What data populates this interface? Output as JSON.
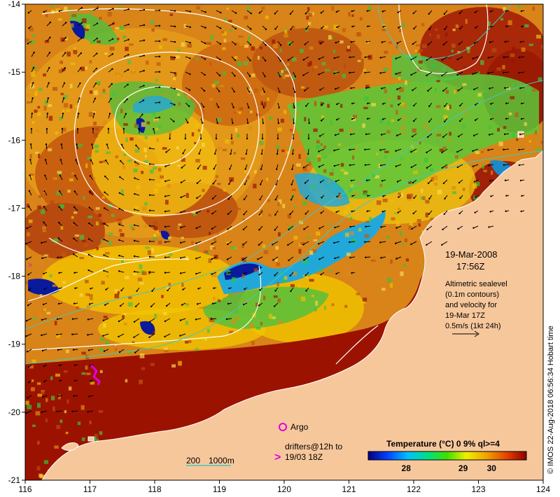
{
  "map": {
    "x_ticks": [
      "116",
      "117",
      "118",
      "119",
      "120",
      "121",
      "122",
      "123",
      "124"
    ],
    "y_ticks": [
      "-14",
      "-15",
      "-16",
      "-17",
      "-18",
      "-19",
      "-20",
      "-21"
    ]
  },
  "annotation": {
    "date": "19-Mar-2008",
    "time": "17:56Z",
    "lines": [
      "Altimetric sealevel",
      "(0.1m contours)",
      "and velocity for",
      "19-Mar 17Z",
      "0.5m/s (1kt 24h)"
    ]
  },
  "legend": {
    "argo": "Argo",
    "drifters_line1": "drifters@12h to",
    "drifters_line2": "19/03 18Z",
    "isobath_left": "200",
    "isobath_right": "1000m"
  },
  "colorbar": {
    "title": "Temperature (°C) 0 9% ql>=4",
    "ticks": [
      "28",
      "29",
      "30"
    ]
  },
  "credit": "© IMOS 22-Aug-2018 06:56:34 Hobart time",
  "colors": {
    "land": "#f7c79c",
    "hot": "#9c1200",
    "warm": "#e08a12",
    "yellow": "#f0c000",
    "green": "#2fc83a",
    "cyan": "#1aaad8",
    "blue": "#0a1a9c",
    "contour": "#ffffff",
    "isobath": "#3fc9c0",
    "argo": "#e000e0"
  }
}
